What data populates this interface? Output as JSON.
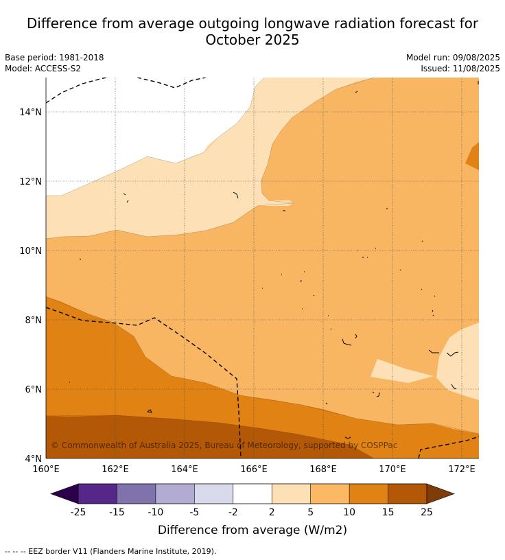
{
  "title_line1": "Difference from average outgoing longwave radiation forecast for",
  "title_line2": "October 2025",
  "meta": {
    "base_period": "Base period: 1981-2018",
    "model": "Model: ACCESS-S2",
    "model_run": "Model run: 09/08/2025",
    "issued": "Issued: 11/08/2025"
  },
  "map": {
    "lat_ticks": [
      "14°N",
      "12°N",
      "10°N",
      "8°N",
      "6°N",
      "4°N"
    ],
    "lon_ticks": [
      "160°E",
      "162°E",
      "164°E",
      "166°E",
      "168°E",
      "170°E",
      "172°E"
    ],
    "copyright": "© Commonwealth of Australia 2025, Bureau of Meteorology, supported by COSPPac",
    "shade_colors": {
      "2_to_5": "#fde0b6",
      "5_to_10": "#f9b662",
      "10_to_15": "#e08214",
      "15_to_25": "#b35806"
    }
  },
  "colorbar": {
    "label": "Difference from average (W/m2)",
    "tick_labels": [
      "-25",
      "-15",
      "-10",
      "-5",
      "-2",
      "2",
      "5",
      "10",
      "15",
      "25"
    ],
    "colors": [
      "#542788",
      "#8073ac",
      "#b2abd2",
      "#d8daeb",
      "#ffffff",
      "#fee0b6",
      "#fdb863",
      "#e08214",
      "#b35806"
    ],
    "under_color": "#2d004b",
    "over_color": "#7f3b08"
  },
  "footer": "--  --  -- EEZ border V11 (Flanders Marine Institute, 2019)."
}
